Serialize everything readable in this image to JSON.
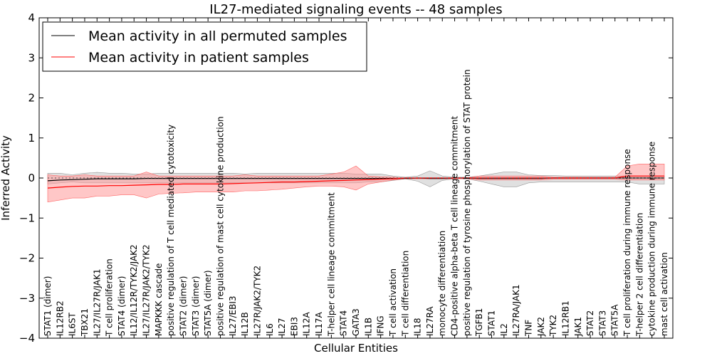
{
  "chart_data": {
    "type": "line",
    "title": "IL27-mediated signaling events -- 48 samples",
    "xlabel": "Cellular Entities",
    "ylabel": "Inferred Activity",
    "ylim": [
      -4,
      4
    ],
    "yticks": [
      -4,
      -3,
      -2,
      -1,
      0,
      1,
      2,
      3,
      4
    ],
    "ytick_labels": [
      "−4",
      "−3",
      "−2",
      "−1",
      "0",
      "1",
      "2",
      "3",
      "4"
    ],
    "legend_position": "top-left",
    "categories": [
      "STAT1 (dimer)",
      "IL12RB2",
      "IL6ST",
      "TBX21",
      "IL27/IL27R/JAK1",
      "T cell proliferation",
      "STAT4 (dimer)",
      "IL12/IL12R/TYK2/JAK2",
      "IL27/IL27R/JAK2/TYK2",
      "MAPKKK cascade",
      "positive regulation of T cell mediated cytotoxicity",
      "STAT2 (dimer)",
      "STAT3 (dimer)",
      "STAT5A (dimer)",
      "positive regulation of mast cell cytokine production",
      "IL27/EBI3",
      "IL12B",
      "IL27R/JAK2/TYK2",
      "IL6",
      "IL27",
      "EBI3",
      "IL12A",
      "IL17A",
      "T-helper cell lineage commitment",
      "STAT4",
      "GATA3",
      "IL1B",
      "IFNG",
      "T cell activation",
      "T cell differentiation",
      "IL18",
      "IL27RA",
      "monocyte differentiation",
      "CD4-positive alpha-beta T cell lineage commitment",
      "positive regulation of tyrosine phosphorylation of STAT protein",
      "TGFB1",
      "STAT1",
      "IL2",
      "IL27RA/JAK1",
      "TNF",
      "JAK2",
      "TYK2",
      "IL12RB1",
      "JAK1",
      "STAT2",
      "STAT3",
      "STAT5A",
      "T cell proliferation during immune response",
      "T-helper 2 cell differentiation",
      "cytokine production during immune response",
      "mast cell activation"
    ],
    "series": [
      {
        "name": "Mean activity in all permuted samples",
        "color": "#000000",
        "band_color": "#bbbbbb",
        "values": [
          -0.07,
          -0.05,
          -0.04,
          -0.03,
          -0.02,
          -0.02,
          -0.02,
          -0.02,
          -0.01,
          -0.01,
          -0.01,
          -0.01,
          -0.01,
          -0.01,
          -0.01,
          -0.01,
          -0.01,
          -0.01,
          -0.01,
          -0.01,
          -0.01,
          -0.01,
          -0.01,
          -0.01,
          -0.01,
          -0.01,
          -0.01,
          -0.01,
          -0.01,
          -0.01,
          0.0,
          -0.01,
          -0.01,
          0.0,
          0.0,
          -0.01,
          -0.01,
          -0.01,
          -0.01,
          -0.01,
          -0.01,
          0.0,
          0.0,
          0.0,
          0.0,
          0.0,
          0.0,
          0.0,
          0.0,
          0.0,
          0.0
        ],
        "upper": [
          0.12,
          0.12,
          0.08,
          0.12,
          0.14,
          0.12,
          0.12,
          0.1,
          0.1,
          0.12,
          0.12,
          0.12,
          0.12,
          0.12,
          0.12,
          0.12,
          0.1,
          0.12,
          0.12,
          0.12,
          0.12,
          0.12,
          0.12,
          0.12,
          0.12,
          0.1,
          0.1,
          0.1,
          0.05,
          0.02,
          0.05,
          0.18,
          0.05,
          0.02,
          0.02,
          0.05,
          0.1,
          0.15,
          0.15,
          0.08,
          0.06,
          0.06,
          0.05,
          0.05,
          0.05,
          0.05,
          0.05,
          0.05,
          0.05,
          0.05,
          0.05
        ],
        "lower": [
          -0.15,
          -0.12,
          -0.1,
          -0.12,
          -0.12,
          -0.12,
          -0.12,
          -0.12,
          -0.12,
          -0.12,
          -0.12,
          -0.12,
          -0.12,
          -0.12,
          -0.12,
          -0.12,
          -0.12,
          -0.12,
          -0.12,
          -0.12,
          -0.12,
          -0.12,
          -0.12,
          -0.12,
          -0.12,
          -0.12,
          -0.1,
          -0.1,
          -0.06,
          -0.02,
          -0.08,
          -0.22,
          -0.06,
          -0.02,
          -0.02,
          -0.08,
          -0.15,
          -0.22,
          -0.22,
          -0.12,
          -0.1,
          -0.1,
          -0.1,
          -0.1,
          -0.1,
          -0.1,
          -0.1,
          -0.1,
          -0.15,
          -0.15,
          -0.15
        ]
      },
      {
        "name": "Mean activity in patient samples",
        "color": "#ff0000",
        "band_color": "#ff9999",
        "values": [
          -0.25,
          -0.23,
          -0.21,
          -0.2,
          -0.2,
          -0.19,
          -0.19,
          -0.18,
          -0.17,
          -0.16,
          -0.16,
          -0.15,
          -0.15,
          -0.15,
          -0.15,
          -0.14,
          -0.13,
          -0.12,
          -0.11,
          -0.1,
          -0.1,
          -0.09,
          -0.08,
          -0.07,
          -0.06,
          -0.05,
          -0.04,
          -0.03,
          -0.02,
          0.0,
          0.0,
          0.0,
          0.0,
          0.0,
          0.0,
          0.0,
          0.0,
          0.0,
          0.0,
          0.0,
          0.0,
          0.0,
          0.0,
          0.0,
          0.0,
          0.0,
          0.0,
          0.05,
          0.05,
          0.05,
          0.05
        ],
        "upper": [
          0.08,
          0.05,
          0.05,
          0.08,
          0.05,
          0.05,
          0.05,
          0.05,
          0.15,
          0.05,
          0.05,
          0.05,
          0.05,
          0.05,
          0.05,
          0.05,
          0.08,
          0.05,
          0.05,
          0.05,
          0.05,
          0.05,
          0.05,
          0.1,
          0.15,
          0.3,
          0.05,
          0.03,
          0.02,
          0.0,
          0.0,
          0.0,
          0.0,
          0.0,
          0.0,
          0.05,
          0.05,
          0.05,
          0.05,
          0.05,
          0.05,
          0.02,
          0.02,
          0.02,
          0.02,
          0.02,
          0.02,
          0.3,
          0.35,
          0.35,
          0.35
        ],
        "lower": [
          -0.6,
          -0.55,
          -0.5,
          -0.5,
          -0.45,
          -0.45,
          -0.42,
          -0.42,
          -0.5,
          -0.4,
          -0.38,
          -0.37,
          -0.35,
          -0.35,
          -0.35,
          -0.35,
          -0.32,
          -0.32,
          -0.3,
          -0.28,
          -0.25,
          -0.22,
          -0.2,
          -0.2,
          -0.22,
          -0.3,
          -0.15,
          -0.1,
          -0.05,
          -0.02,
          -0.02,
          -0.02,
          -0.02,
          -0.02,
          -0.02,
          -0.05,
          -0.05,
          -0.05,
          -0.05,
          -0.05,
          -0.05,
          -0.03,
          -0.03,
          -0.03,
          -0.03,
          -0.03,
          -0.03,
          -0.05,
          -0.05,
          -0.05,
          -0.05
        ]
      }
    ]
  }
}
